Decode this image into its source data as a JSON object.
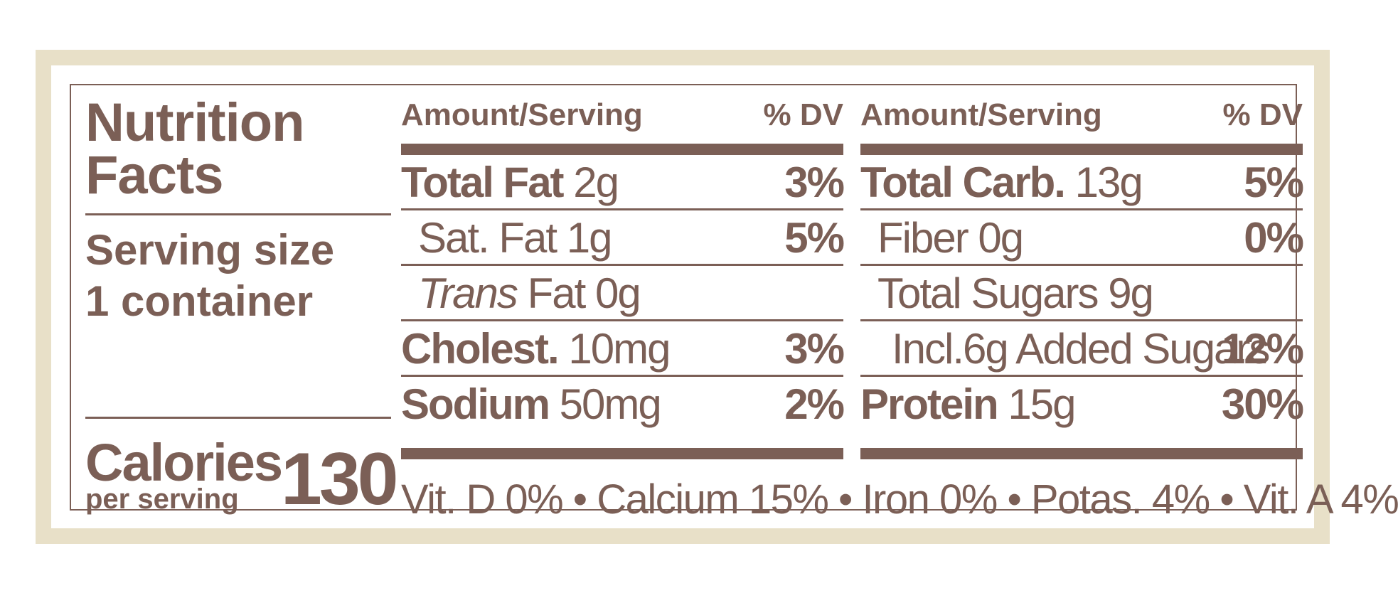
{
  "label": {
    "title_line1": "Nutrition",
    "title_line2": "Facts",
    "serving_line1": "Serving size",
    "serving_line2": "1 container",
    "calories_label": "Calories",
    "calories_sub": "per serving",
    "calories_value": "130"
  },
  "headers": {
    "amount": "Amount/Serving",
    "dv": "% DV"
  },
  "left_column": [
    {
      "name": "Total Fat",
      "amount": "2g",
      "dv": "3%",
      "bold": true
    },
    {
      "name": "Sat. Fat",
      "amount": "1g",
      "dv": "5%",
      "bold": false
    },
    {
      "name_italic": "Trans",
      "name": "Fat",
      "amount": "0g",
      "dv": "",
      "bold": false
    },
    {
      "name": "Cholest.",
      "amount": "10mg",
      "dv": "3%",
      "bold": true
    },
    {
      "name": "Sodium",
      "amount": "50mg",
      "dv": "2%",
      "bold": true
    }
  ],
  "right_column": [
    {
      "name": "Total Carb.",
      "amount": "13g",
      "dv": "5%",
      "bold": true
    },
    {
      "name": "Fiber",
      "amount": "0g",
      "dv": "0%",
      "bold": false
    },
    {
      "name": "Total Sugars",
      "amount": "9g",
      "dv": "",
      "bold": false
    },
    {
      "name": "Incl.6g Added Sugars",
      "amount": "",
      "dv": "12%",
      "bold": false
    },
    {
      "name": "Protein",
      "amount": "15g",
      "dv": "30%",
      "bold": true
    }
  ],
  "vitamins": "Vit. D 0% • Calcium 15% • Iron 0% • Potas. 4% • Vit. A 4%",
  "colors": {
    "ink": "#7b5f56",
    "border": "#e8e0c8"
  }
}
